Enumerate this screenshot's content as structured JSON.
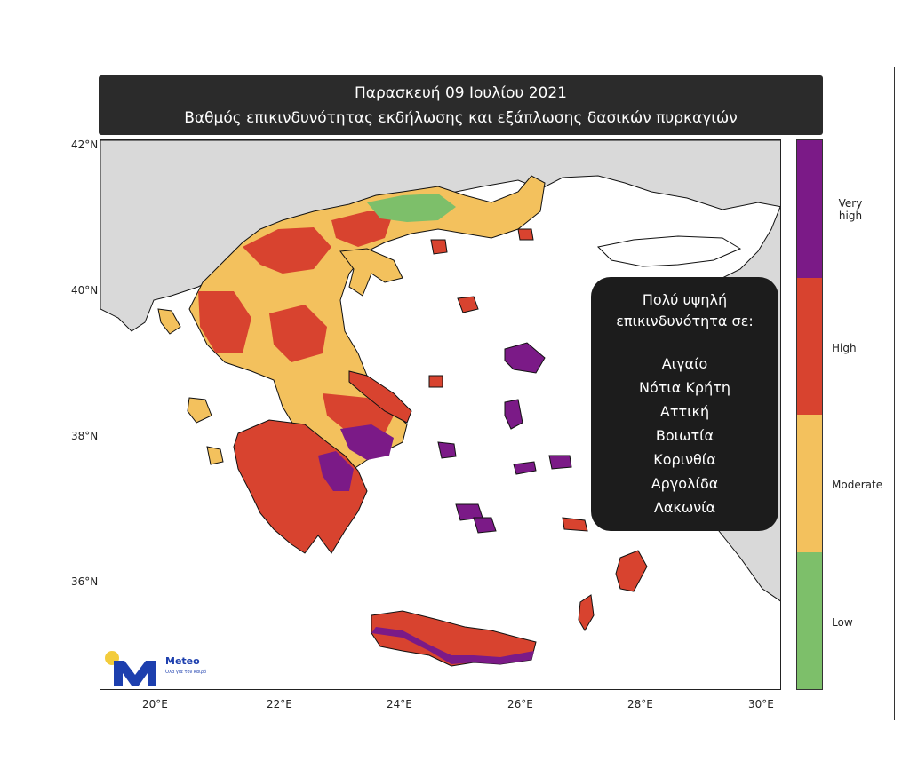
{
  "title": {
    "line1": "Παρασκευή 09 Ιουλίου 2021",
    "line2": "Βαθμός επικινδυνότητας εκδήλωσης και εξάπλωσης δασικών πυρκαγιών"
  },
  "map": {
    "lat_ticks": [
      "42°N",
      "40°N",
      "38°N",
      "36°N"
    ],
    "lon_ticks": [
      "20°E",
      "22°E",
      "24°E",
      "26°E",
      "28°E",
      "30°E"
    ],
    "colors": {
      "sea": "#ffffff",
      "neighbor_land": "#d9d9d9",
      "border": "#111111"
    }
  },
  "legend": {
    "levels": [
      {
        "label": "Very high",
        "color": "#7b1a87"
      },
      {
        "label": "High",
        "color": "#d8432f"
      },
      {
        "label": "Moderate",
        "color": "#f3c15d"
      },
      {
        "label": "Low",
        "color": "#7dbf6a"
      }
    ]
  },
  "info_box": {
    "heading_line1": "Πολύ υψηλή",
    "heading_line2": "επικινδυνότητα σε:",
    "regions": [
      "Αιγαίο",
      "Νότια Κρήτη",
      "Αττική",
      "Βοιωτία",
      "Κορινθία",
      "Αργολίδα",
      "Λακωνία"
    ]
  },
  "logo": {
    "brand": "Meteo",
    "tagline": "Όλα για τον καιρό",
    "colors": {
      "blue": "#1d3fae",
      "sun": "#f3cc3c"
    }
  }
}
